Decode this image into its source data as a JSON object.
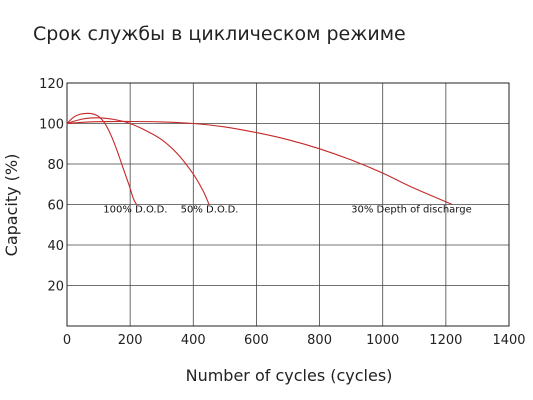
{
  "chart_data": {
    "type": "line",
    "title": "Срок службы в циклическом режиме",
    "xlabel": "Number of cycles (cycles)",
    "ylabel": "Capacity (%)",
    "xlim": [
      0,
      1400
    ],
    "ylim": [
      0,
      120
    ],
    "x_ticks": [
      0,
      200,
      400,
      600,
      800,
      1000,
      1200,
      1400
    ],
    "y_ticks": [
      20,
      40,
      60,
      80,
      100,
      120
    ],
    "grid": true,
    "line_color": "#c62828",
    "series": [
      {
        "name": "100% D.O.D.",
        "points": [
          [
            0,
            100
          ],
          [
            20,
            103
          ],
          [
            40,
            104.5
          ],
          [
            60,
            105
          ],
          [
            80,
            104.8
          ],
          [
            100,
            103.5
          ],
          [
            120,
            100
          ],
          [
            140,
            94
          ],
          [
            160,
            86
          ],
          [
            180,
            77
          ],
          [
            200,
            68
          ],
          [
            210,
            63
          ],
          [
            220,
            60
          ]
        ]
      },
      {
        "name": "50% D.O.D.",
        "points": [
          [
            0,
            100
          ],
          [
            30,
            101.5
          ],
          [
            60,
            102.5
          ],
          [
            100,
            102.8
          ],
          [
            150,
            102
          ],
          [
            200,
            100
          ],
          [
            250,
            96.5
          ],
          [
            300,
            92
          ],
          [
            350,
            85
          ],
          [
            400,
            75
          ],
          [
            430,
            67
          ],
          [
            450,
            60
          ]
        ]
      },
      {
        "name": "30% Depth of discharge",
        "points": [
          [
            0,
            100
          ],
          [
            50,
            100.6
          ],
          [
            100,
            100.9
          ],
          [
            200,
            101
          ],
          [
            300,
            100.8
          ],
          [
            400,
            100
          ],
          [
            500,
            98.3
          ],
          [
            600,
            95.5
          ],
          [
            700,
            92
          ],
          [
            800,
            87.5
          ],
          [
            900,
            82
          ],
          [
            1000,
            75.5
          ],
          [
            1100,
            68
          ],
          [
            1220,
            60
          ]
        ]
      }
    ],
    "annotations": [
      {
        "text": "100% D.O.D.",
        "x": 115,
        "y": 56
      },
      {
        "text": "50% D.O.D.",
        "x": 360,
        "y": 56
      },
      {
        "text": "30% Depth of discharge",
        "x": 900,
        "y": 56
      }
    ]
  }
}
